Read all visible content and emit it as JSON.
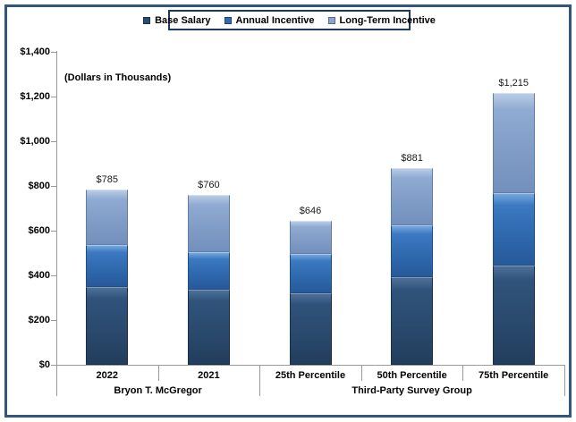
{
  "note": "(Dollars in Thousands)",
  "legend": {
    "items": [
      {
        "label": "Base Salary",
        "color": "#2B4C72"
      },
      {
        "label": "Annual Incentive",
        "color": "#2F6BB0"
      },
      {
        "label": "Long-Term Incentive",
        "color": "#8AA5CE"
      }
    ]
  },
  "colors": {
    "frame_border": "#30557E",
    "legend_border": "#1B3A5F",
    "axis": "#9a9a9a",
    "base_salary": "#2B4C72",
    "annual_incentive": "#2F6BB0",
    "long_term_incentive": "#8AA5CE"
  },
  "chart_data": {
    "type": "bar",
    "stacked": true,
    "title": "",
    "xlabel": "",
    "ylabel": "(Dollars in Thousands)",
    "grid": false,
    "legend_position": "top",
    "ylim": [
      0,
      1400
    ],
    "y_ticks": [
      {
        "v": 1400,
        "label": "$1,400"
      },
      {
        "v": 1200,
        "label": "$1,200"
      },
      {
        "v": 1000,
        "label": "$1,000"
      },
      {
        "v": 800,
        "label": "$800"
      },
      {
        "v": 600,
        "label": "$600"
      },
      {
        "v": 400,
        "label": "$400"
      },
      {
        "v": 200,
        "label": "$200"
      },
      {
        "v": 0,
        "label": "$0"
      }
    ],
    "categories": [
      "2022",
      "2021",
      "25th Percentile",
      "50th Percentile",
      "75th Percentile"
    ],
    "groups": [
      {
        "label": "Bryon T. McGregor",
        "span": [
          0,
          1
        ]
      },
      {
        "label": "Third-Party Survey Group",
        "span": [
          2,
          4
        ]
      }
    ],
    "series": [
      {
        "name": "Base Salary",
        "values": [
          350,
          335,
          322,
          392,
          445
        ]
      },
      {
        "name": "Annual Incentive",
        "values": [
          185,
          170,
          173,
          233,
          325
        ]
      },
      {
        "name": "Long-Term Incentive",
        "values": [
          250,
          255,
          151,
          256,
          445
        ]
      }
    ],
    "totals": [
      785,
      760,
      646,
      881,
      1215
    ],
    "total_labels": [
      "$785",
      "$760",
      "$646",
      "$881",
      "$1,215"
    ]
  }
}
